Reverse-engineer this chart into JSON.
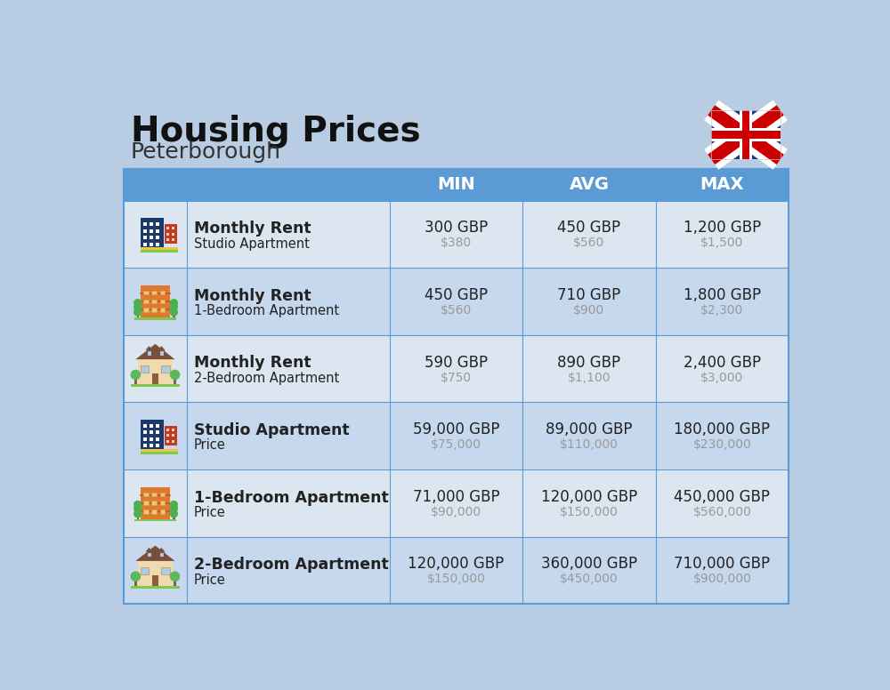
{
  "title": "Housing Prices",
  "subtitle": "Peterborough",
  "background_color": "#b8cce4",
  "header_color": "#5b9bd5",
  "header_text_color": "#ffffff",
  "row_colors": [
    "#dce6f1",
    "#c5d8ed"
  ],
  "col_divider_color": "#5b9bd5",
  "text_color_dark": "#222222",
  "text_color_usd": "#9a9a9a",
  "headers": [
    "MIN",
    "AVG",
    "MAX"
  ],
  "rows": [
    {
      "label_bold": "Monthly Rent",
      "label_sub": "Studio Apartment",
      "icon_type": "blue_building",
      "min_gbp": "300 GBP",
      "min_usd": "$380",
      "avg_gbp": "450 GBP",
      "avg_usd": "$560",
      "max_gbp": "1,200 GBP",
      "max_usd": "$1,500"
    },
    {
      "label_bold": "Monthly Rent",
      "label_sub": "1-Bedroom Apartment",
      "icon_type": "orange_building",
      "min_gbp": "450 GBP",
      "min_usd": "$560",
      "avg_gbp": "710 GBP",
      "avg_usd": "$900",
      "max_gbp": "1,800 GBP",
      "max_usd": "$2,300"
    },
    {
      "label_bold": "Monthly Rent",
      "label_sub": "2-Bedroom Apartment",
      "icon_type": "house_building",
      "min_gbp": "590 GBP",
      "min_usd": "$750",
      "avg_gbp": "890 GBP",
      "avg_usd": "$1,100",
      "max_gbp": "2,400 GBP",
      "max_usd": "$3,000"
    },
    {
      "label_bold": "Studio Apartment",
      "label_sub": "Price",
      "icon_type": "blue_building",
      "min_gbp": "59,000 GBP",
      "min_usd": "$75,000",
      "avg_gbp": "89,000 GBP",
      "avg_usd": "$110,000",
      "max_gbp": "180,000 GBP",
      "max_usd": "$230,000"
    },
    {
      "label_bold": "1-Bedroom Apartment",
      "label_sub": "Price",
      "icon_type": "orange_building",
      "min_gbp": "71,000 GBP",
      "min_usd": "$90,000",
      "avg_gbp": "120,000 GBP",
      "avg_usd": "$150,000",
      "max_gbp": "450,000 GBP",
      "max_usd": "$560,000"
    },
    {
      "label_bold": "2-Bedroom Apartment",
      "label_sub": "Price",
      "icon_type": "house_building",
      "min_gbp": "120,000 GBP",
      "min_usd": "$150,000",
      "avg_gbp": "360,000 GBP",
      "avg_usd": "$450,000",
      "max_gbp": "710,000 GBP",
      "max_usd": "$900,000"
    }
  ]
}
